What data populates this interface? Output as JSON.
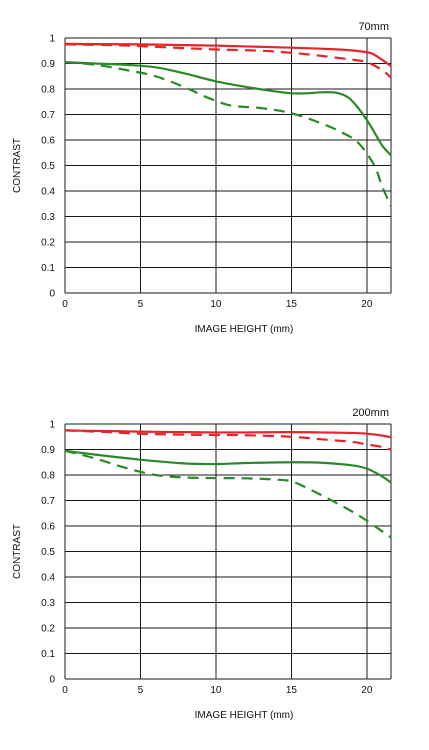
{
  "chart_data": [
    {
      "type": "line",
      "title": "70mm",
      "xlabel": "IMAGE HEIGHT (mm)",
      "ylabel": "CONTRAST",
      "xlim": [
        0,
        21.6
      ],
      "ylim": [
        0,
        1
      ],
      "xticks": [
        "0",
        "5",
        "10",
        "15",
        "20"
      ],
      "yticks": [
        "0",
        "0.1",
        "0.2",
        "0.3",
        "0.4",
        "0.5",
        "0.6",
        "0.7",
        "0.8",
        "0.9",
        "1"
      ],
      "grid": true,
      "series": [
        {
          "color": "#e8242b",
          "style": "solid",
          "x": [
            0,
            2,
            5,
            8,
            10,
            12,
            15,
            17,
            18.5,
            19.5,
            20.3,
            21,
            21.6
          ],
          "y": [
            0.977,
            0.976,
            0.975,
            0.972,
            0.97,
            0.967,
            0.962,
            0.958,
            0.954,
            0.948,
            0.94,
            0.915,
            0.89
          ]
        },
        {
          "color": "#e8242b",
          "style": "dashed",
          "x": [
            0,
            3,
            5,
            8,
            10,
            13,
            15,
            17,
            19,
            20,
            21,
            21.6
          ],
          "y": [
            0.975,
            0.972,
            0.968,
            0.96,
            0.955,
            0.95,
            0.942,
            0.93,
            0.915,
            0.905,
            0.875,
            0.845
          ]
        },
        {
          "color": "#2a8a2a",
          "style": "solid",
          "x": [
            0,
            2,
            4,
            6,
            8,
            10,
            12,
            14,
            15,
            16,
            17,
            18,
            18.8,
            19.5,
            20.2,
            21,
            21.6
          ],
          "y": [
            0.905,
            0.9,
            0.895,
            0.885,
            0.86,
            0.83,
            0.808,
            0.79,
            0.783,
            0.783,
            0.787,
            0.785,
            0.765,
            0.72,
            0.66,
            0.58,
            0.54
          ]
        },
        {
          "color": "#2a8a2a",
          "style": "dashed",
          "x": [
            0,
            2,
            4,
            6,
            8,
            9.5,
            11,
            13,
            15,
            17,
            18.5,
            19.5,
            20.5,
            21,
            21.6
          ],
          "y": [
            0.905,
            0.895,
            0.875,
            0.85,
            0.805,
            0.765,
            0.735,
            0.725,
            0.705,
            0.665,
            0.625,
            0.585,
            0.5,
            0.42,
            0.34
          ]
        }
      ]
    },
    {
      "type": "line",
      "title": "200mm",
      "xlabel": "IMAGE HEIGHT (mm)",
      "ylabel": "CONTRAST",
      "xlim": [
        0,
        21.6
      ],
      "ylim": [
        0,
        1
      ],
      "xticks": [
        "0",
        "5",
        "10",
        "15",
        "20"
      ],
      "yticks": [
        "0",
        "0.1",
        "0.2",
        "0.3",
        "0.4",
        "0.5",
        "0.6",
        "0.7",
        "0.8",
        "0.9",
        "1"
      ],
      "grid": true,
      "series": [
        {
          "color": "#e8242b",
          "style": "solid",
          "x": [
            0,
            3,
            5,
            8,
            10,
            12,
            15,
            17,
            19,
            20,
            21,
            21.6
          ],
          "y": [
            0.975,
            0.972,
            0.97,
            0.968,
            0.967,
            0.967,
            0.968,
            0.967,
            0.965,
            0.962,
            0.955,
            0.948
          ]
        },
        {
          "color": "#e8242b",
          "style": "dashed",
          "x": [
            0,
            3,
            5,
            8,
            10,
            12,
            15,
            17,
            19,
            20,
            21,
            21.6
          ],
          "y": [
            0.975,
            0.968,
            0.962,
            0.958,
            0.957,
            0.956,
            0.95,
            0.94,
            0.93,
            0.92,
            0.91,
            0.9
          ]
        },
        {
          "color": "#2a8a2a",
          "style": "solid",
          "x": [
            0,
            2,
            5,
            8,
            10,
            12,
            15,
            17,
            19,
            20,
            21,
            21.6
          ],
          "y": [
            0.895,
            0.88,
            0.86,
            0.845,
            0.843,
            0.847,
            0.85,
            0.848,
            0.838,
            0.825,
            0.795,
            0.77
          ]
        },
        {
          "color": "#2a8a2a",
          "style": "dashed",
          "x": [
            0,
            2,
            4,
            6,
            8,
            10,
            12,
            14,
            15,
            16,
            18,
            19.5,
            20.5,
            21.6
          ],
          "y": [
            0.895,
            0.865,
            0.828,
            0.8,
            0.79,
            0.788,
            0.787,
            0.782,
            0.775,
            0.75,
            0.69,
            0.64,
            0.6,
            0.555
          ]
        }
      ]
    }
  ]
}
